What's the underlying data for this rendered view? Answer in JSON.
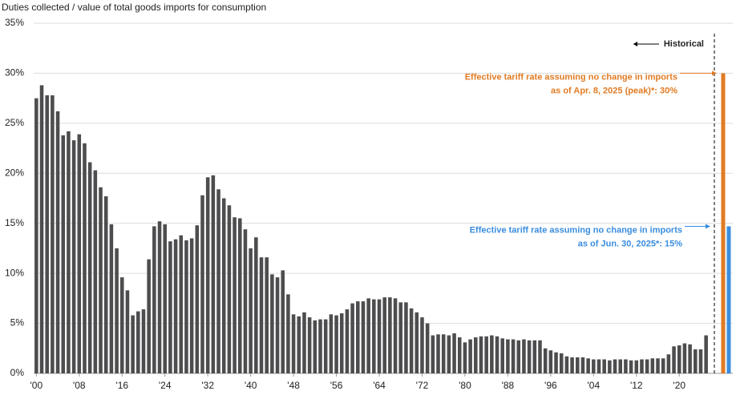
{
  "chart_data": {
    "type": "bar",
    "y_label": "Duties collected / value of total goods imports for consumption",
    "divider_label": "Historical",
    "color": "#4d4d4f",
    "grid": true,
    "ylim": [
      0,
      35
    ],
    "yticks": [
      {
        "value": 0,
        "label": "0%"
      },
      {
        "value": 5,
        "label": "5%"
      },
      {
        "value": 10,
        "label": "10%"
      },
      {
        "value": 15,
        "label": "15%"
      },
      {
        "value": 20,
        "label": "20%"
      },
      {
        "value": 25,
        "label": "25%"
      },
      {
        "value": 30,
        "label": "30%"
      },
      {
        "value": 35,
        "label": "35%"
      }
    ],
    "categories": [
      "'00",
      null,
      null,
      null,
      null,
      null,
      null,
      null,
      "'08",
      null,
      null,
      null,
      null,
      null,
      null,
      null,
      "'16",
      null,
      null,
      null,
      null,
      null,
      null,
      null,
      "'24",
      null,
      null,
      null,
      null,
      null,
      null,
      null,
      "'32",
      null,
      null,
      null,
      null,
      null,
      null,
      null,
      "'40",
      null,
      null,
      null,
      null,
      null,
      null,
      null,
      "'48",
      null,
      null,
      null,
      null,
      null,
      null,
      null,
      "'56",
      null,
      null,
      null,
      null,
      null,
      null,
      null,
      "'64",
      null,
      null,
      null,
      null,
      null,
      null,
      null,
      "'72",
      null,
      null,
      null,
      null,
      null,
      null,
      null,
      "'80",
      null,
      null,
      null,
      null,
      null,
      null,
      null,
      "'88",
      null,
      null,
      null,
      null,
      null,
      null,
      null,
      "'96",
      null,
      null,
      null,
      null,
      null,
      null,
      null,
      "'04",
      null,
      null,
      null,
      null,
      null,
      null,
      null,
      "'12",
      null,
      null,
      null,
      null,
      null,
      null,
      null,
      "'20",
      null,
      null,
      null,
      null,
      null
    ],
    "values": [
      27.5,
      28.8,
      27.8,
      27.8,
      26.2,
      23.8,
      24.2,
      23.3,
      23.9,
      23.0,
      21.1,
      20.3,
      18.6,
      17.7,
      14.9,
      12.5,
      9.6,
      8.3,
      5.8,
      6.2,
      6.4,
      11.4,
      14.7,
      15.2,
      14.9,
      13.2,
      13.4,
      13.8,
      13.3,
      13.5,
      14.8,
      17.8,
      19.6,
      19.8,
      18.4,
      17.5,
      16.8,
      15.6,
      15.5,
      14.4,
      12.5,
      13.6,
      11.6,
      11.6,
      9.9,
      9.6,
      10.3,
      7.9,
      5.9,
      5.7,
      6.1,
      5.6,
      5.3,
      5.4,
      5.4,
      5.9,
      5.8,
      6.0,
      6.4,
      7.0,
      7.2,
      7.2,
      7.5,
      7.4,
      7.4,
      7.6,
      7.6,
      7.5,
      7.1,
      7.1,
      6.5,
      6.1,
      5.6,
      5.0,
      3.8,
      3.9,
      3.9,
      3.8,
      4.0,
      3.6,
      3.1,
      3.4,
      3.6,
      3.7,
      3.7,
      3.8,
      3.7,
      3.5,
      3.4,
      3.4,
      3.3,
      3.4,
      3.3,
      3.3,
      3.3,
      2.5,
      2.3,
      2.1,
      2.0,
      1.7,
      1.6,
      1.6,
      1.6,
      1.5,
      1.4,
      1.4,
      1.4,
      1.3,
      1.4,
      1.4,
      1.4,
      1.3,
      1.3,
      1.4,
      1.4,
      1.5,
      1.5,
      1.5,
      1.9,
      2.7,
      2.8,
      3.0,
      2.9,
      2.4,
      2.4,
      3.8
    ],
    "projections": [
      {
        "value": 30,
        "color": "#e07b24",
        "label": [
          "Effective tariff rate assuming no change in imports",
          "as of Apr. 8, 2025 (peak)*: 30%"
        ]
      },
      {
        "value": 14.7,
        "color": "#3a8dde",
        "label": [
          "Effective tariff rate assuming no change in imports",
          "as of Jun. 30, 2025*: 15%"
        ]
      }
    ]
  }
}
